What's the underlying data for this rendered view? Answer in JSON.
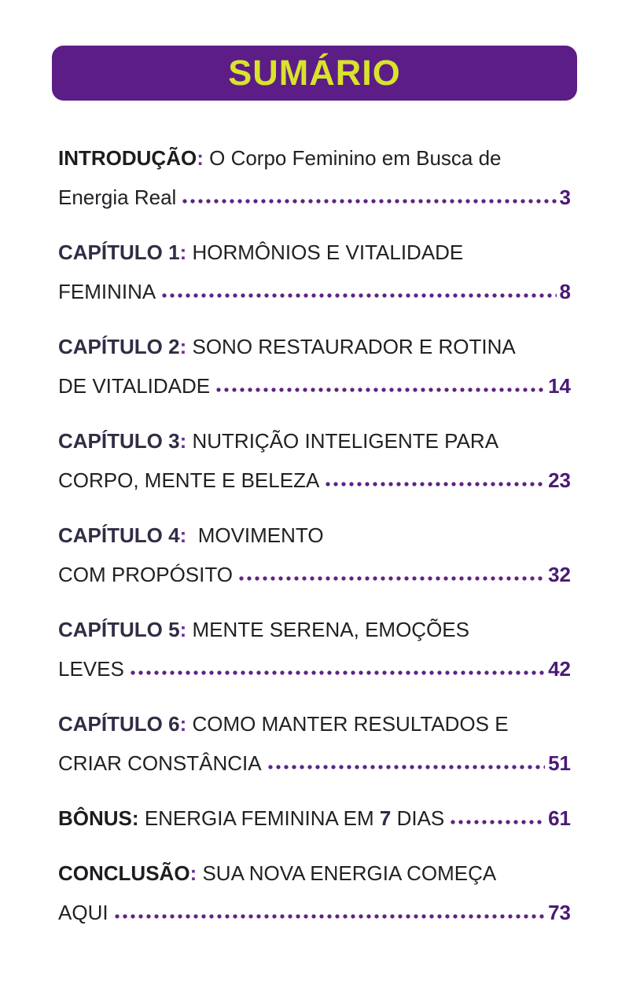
{
  "header": {
    "title": "SUMÁRIO"
  },
  "colors": {
    "header_bg": "#5c1d86",
    "header_text": "#d9e32b",
    "body_text": "#212125",
    "bold_prefix_dark": "#1d1c20",
    "bold_prefix_plum": "#332c44",
    "accent_purple": "#6b2d94",
    "dot_leader": "#5e2285",
    "page_number": "#4a1a75"
  },
  "toc": {
    "entries": [
      {
        "prefix": "INTRODUÇÃO",
        "colon": ":",
        "line1": "O Corpo Feminino em Busca de",
        "line2": "Energia Real",
        "page": "3"
      },
      {
        "prefix": "CAPÍTULO 1",
        "colon": ":",
        "line1": "HORMÔNIOS E VITALIDADE",
        "line2": "FEMININA",
        "page": "8"
      },
      {
        "prefix": "CAPÍTULO 2",
        "colon": ":",
        "line1": "SONO RESTAURADOR E ROTINA",
        "line2": "DE VITALIDADE",
        "page": "14"
      },
      {
        "prefix": "CAPÍTULO 3",
        "colon": ":",
        "line1": "NUTRIÇÃO INTELIGENTE PARA",
        "line2": "CORPO, MENTE E BELEZA",
        "page": "23"
      },
      {
        "prefix": "CAPÍTULO 4",
        "colon": ":",
        "line1": "MOVIMENTO",
        "line2": "COM PROPÓSITO",
        "page": "32"
      },
      {
        "prefix": "CAPÍTULO 5",
        "colon": ":",
        "line1": "MENTE SERENA, EMOÇÕES",
        "line2": "LEVES",
        "page": "42"
      },
      {
        "prefix": "CAPÍTULO 6",
        "colon": ":",
        "line1": "COMO MANTER RESULTADOS E",
        "line2": "CRIAR CONSTÂNCIA",
        "page": "51"
      },
      {
        "prefix": "BÔNUS",
        "colon": ":",
        "title_a": "ENERGIA FEMININA EM",
        "title_bold": "7",
        "title_b": "DIAS",
        "page": "61"
      },
      {
        "prefix": "CONCLUSÃO",
        "colon": ":",
        "line1": "SUA NOVA ENERGIA COMEÇA",
        "line2": "AQUI",
        "page": "73"
      }
    ]
  }
}
